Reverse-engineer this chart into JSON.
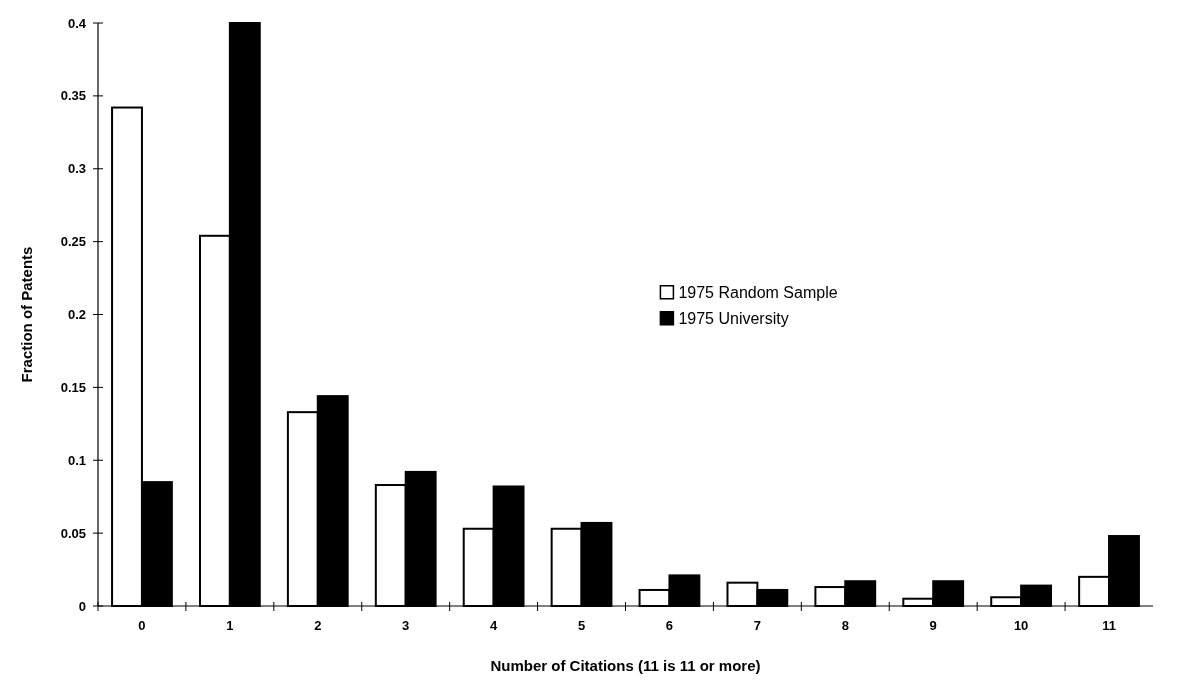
{
  "chart_data": {
    "type": "bar",
    "xlabel": "Number of Citations (11 is 11 or more)",
    "ylabel": "Fraction of Patents",
    "categories": [
      "0",
      "1",
      "2",
      "3",
      "4",
      "5",
      "6",
      "7",
      "8",
      "9",
      "10",
      "11"
    ],
    "series": [
      {
        "name": "1975 Random Sample",
        "color": "#ffffff",
        "values": [
          0.342,
          0.254,
          0.133,
          0.083,
          0.053,
          0.053,
          0.011,
          0.016,
          0.013,
          0.005,
          0.006,
          0.02
        ]
      },
      {
        "name": "1975 University",
        "color": "#000000",
        "values": [
          0.085,
          0.4,
          0.144,
          0.092,
          0.082,
          0.057,
          0.021,
          0.011,
          0.017,
          0.017,
          0.014,
          0.048
        ]
      }
    ],
    "ylim": [
      0,
      0.4
    ],
    "yticks": [
      0,
      0.05,
      0.1,
      0.15,
      0.2,
      0.25,
      0.3,
      0.35,
      0.4
    ],
    "legend": "center",
    "grid": false
  }
}
